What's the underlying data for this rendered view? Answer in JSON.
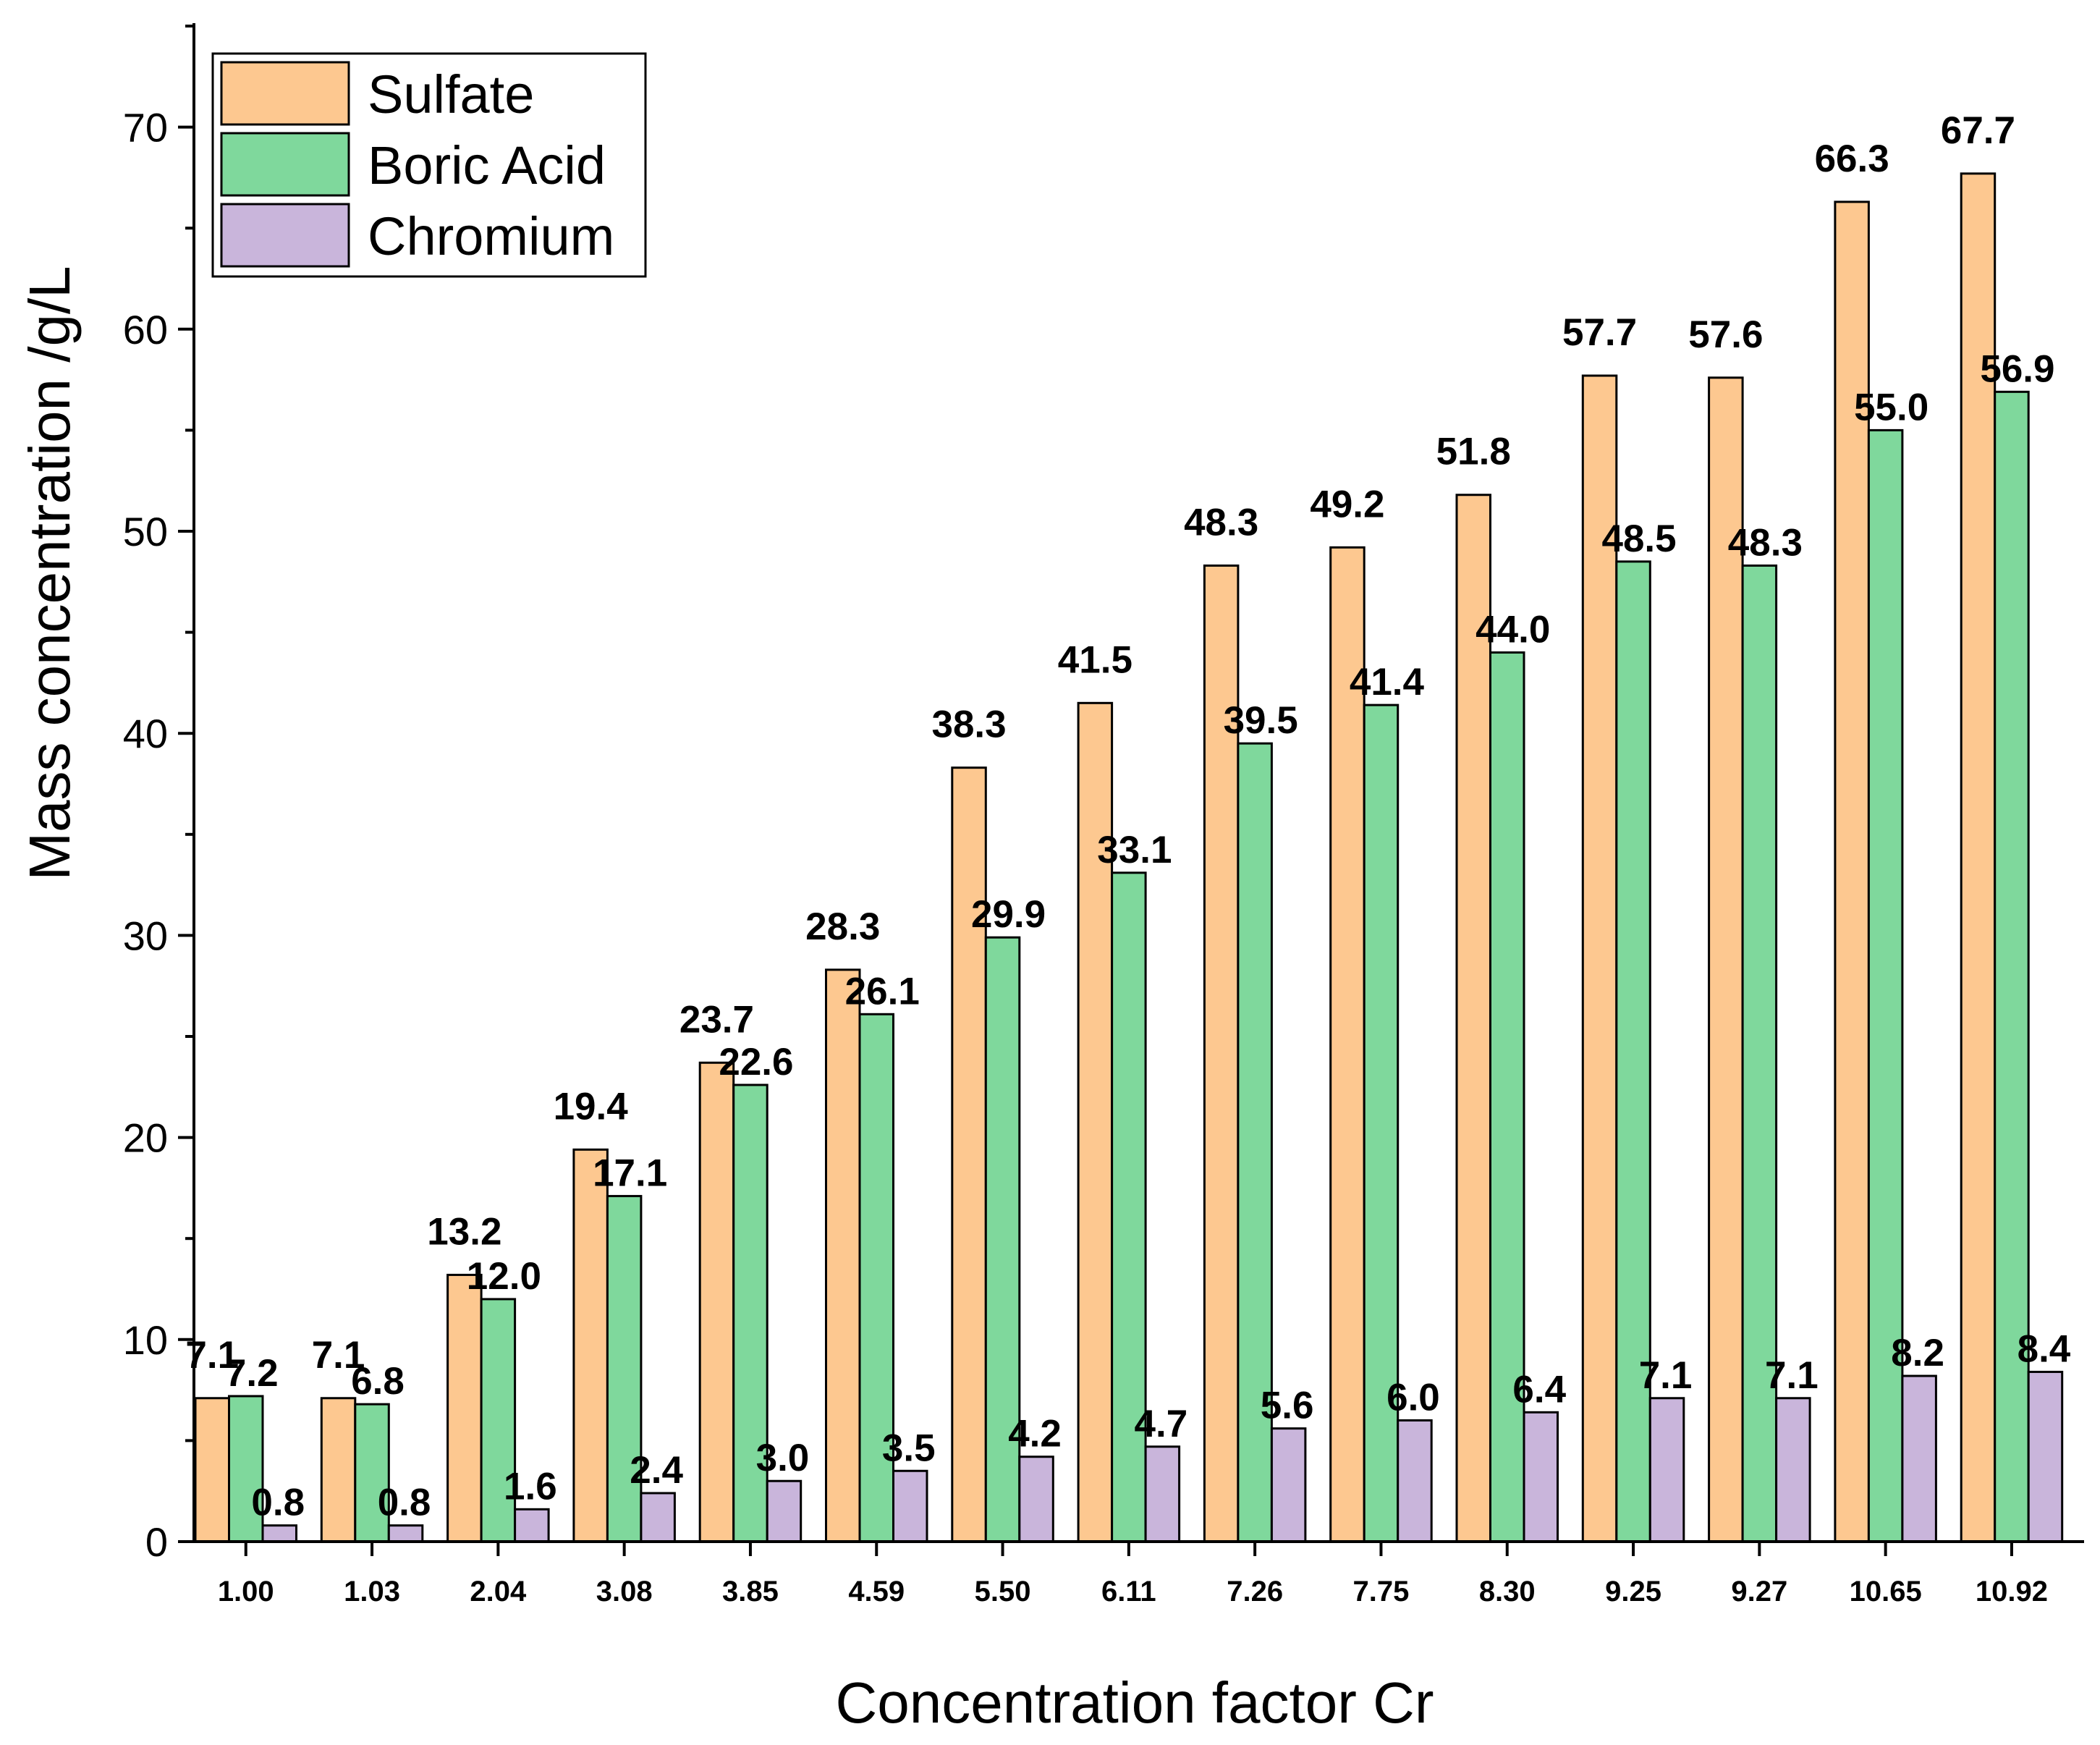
{
  "chart_data": {
    "type": "bar",
    "title": "",
    "xlabel": "Concentration factor Cr",
    "ylabel": "Mass concentration /g/L",
    "ylim": [
      0,
      75
    ],
    "yticks": [
      0,
      10,
      20,
      30,
      40,
      50,
      60,
      70
    ],
    "legend_position": "top-left",
    "grid": false,
    "categories": [
      "1.00",
      "1.03",
      "2.04",
      "3.08",
      "3.85",
      "4.59",
      "5.50",
      "6.11",
      "7.26",
      "7.75",
      "8.30",
      "9.25",
      "9.27",
      "10.65",
      "10.92"
    ],
    "series": [
      {
        "name": "Sulfate",
        "color": "#FDC890",
        "values": [
          7.1,
          7.1,
          13.2,
          19.4,
          23.7,
          28.3,
          38.3,
          41.5,
          48.3,
          49.2,
          51.8,
          57.7,
          57.6,
          66.3,
          67.7
        ],
        "labels": [
          "7.1",
          "7.1",
          "13.2",
          "19.4",
          "23.7",
          "28.3",
          "38.3",
          "41.5",
          "48.3",
          "49.2",
          "51.8",
          "57.7",
          "57.6",
          "66.3",
          "67.7"
        ]
      },
      {
        "name": "Boric Acid",
        "color": "#7FD89C",
        "values": [
          7.2,
          6.8,
          12.0,
          17.1,
          22.6,
          26.1,
          29.9,
          33.1,
          39.5,
          41.4,
          44.0,
          48.5,
          48.3,
          55.0,
          56.9
        ],
        "labels": [
          "7.2",
          "6.8",
          "12.0",
          "17.1",
          "22.6",
          "26.1",
          "29.9",
          "33.1",
          "39.5",
          "41.4",
          "44.0",
          "48.5",
          "48.3",
          "55.0",
          "56.9"
        ]
      },
      {
        "name": "Chromium",
        "color": "#C9B5DB",
        "values": [
          0.8,
          0.8,
          1.6,
          2.4,
          3.0,
          3.5,
          4.2,
          4.7,
          5.6,
          6.0,
          6.4,
          7.1,
          7.1,
          8.2,
          8.4
        ],
        "labels": [
          "0.8",
          "0.8",
          "1.6",
          "2.4",
          "3.0",
          "3.5",
          "4.2",
          "4.7",
          "5.6",
          "6.0",
          "6.4",
          "7.1",
          "7.1",
          "8.2",
          "8.4"
        ]
      }
    ]
  }
}
